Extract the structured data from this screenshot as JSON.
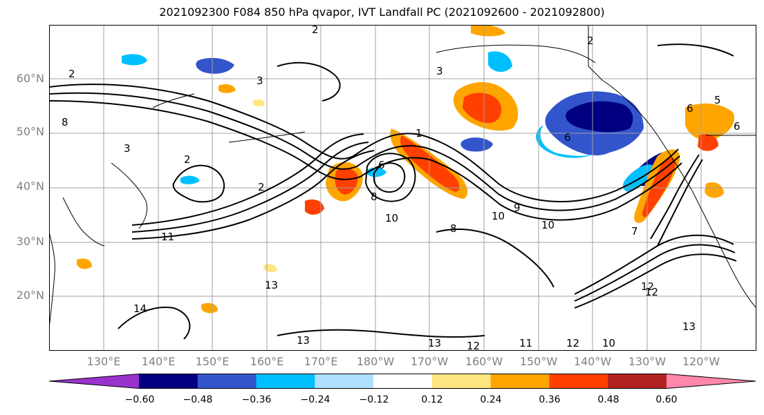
{
  "title": "2021092300 F084 850 hPa qvapor, IVT Landfall PC (2021092600 - 2021092800)",
  "map": {
    "lat_labels": [
      "60°N",
      "50°N",
      "40°N",
      "30°N",
      "20°N"
    ],
    "lon_labels": [
      "130°E",
      "140°E",
      "150°E",
      "160°E",
      "170°E",
      "180°W",
      "170°W",
      "160°W",
      "150°W",
      "140°W",
      "130°W",
      "120°W"
    ],
    "contour_labels": [
      "2",
      "3",
      "2",
      "3",
      "1",
      "8",
      "3",
      "2",
      "2",
      "6",
      "8",
      "10",
      "11",
      "10",
      "9",
      "8",
      "10",
      "6",
      "12",
      "13",
      "14",
      "13",
      "13",
      "12",
      "11",
      "12",
      "10",
      "13",
      "12",
      "7",
      "6",
      "5",
      "6",
      "2"
    ]
  },
  "colorbar": {
    "tick_labels": [
      "−0.60",
      "−0.48",
      "−0.36",
      "−0.24",
      "−0.12",
      "0.12",
      "0.24",
      "0.36",
      "0.48",
      "0.60"
    ],
    "colors": [
      "#9933cc",
      "#000080",
      "#3355cc",
      "#00bfff",
      "#b0e0ff",
      "#ffffff",
      "#ffe680",
      "#ffa500",
      "#ff4000",
      "#b22222",
      "#ff88aa"
    ]
  }
}
